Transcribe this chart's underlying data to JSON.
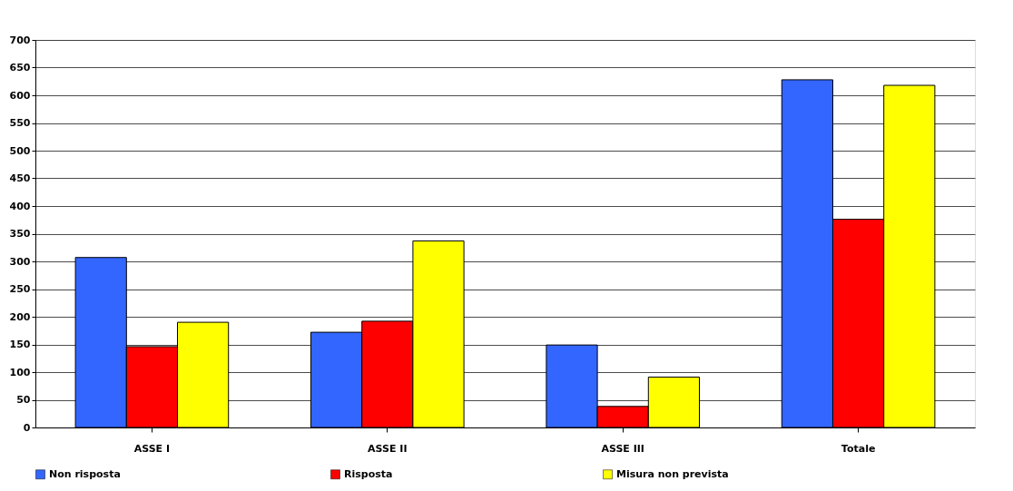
{
  "chart_data": {
    "type": "bar",
    "categories": [
      "ASSE I",
      "ASSE II",
      "ASSE III",
      "Totale"
    ],
    "series": [
      {
        "name": "Non risposta",
        "color": "#3366ff",
        "values": [
          307,
          172,
          149,
          628
        ]
      },
      {
        "name": "Risposta",
        "color": "#ff0000",
        "values": [
          146,
          192,
          38,
          376
        ]
      },
      {
        "name": "Misura non prevista",
        "color": "#ffff00",
        "values": [
          190,
          337,
          91,
          618
        ]
      }
    ],
    "ylim": [
      0,
      700
    ],
    "yticks": [
      0,
      50,
      100,
      150,
      200,
      250,
      300,
      350,
      400,
      450,
      500,
      550,
      600,
      650,
      700
    ],
    "grid": "y",
    "legend": "bottom"
  }
}
